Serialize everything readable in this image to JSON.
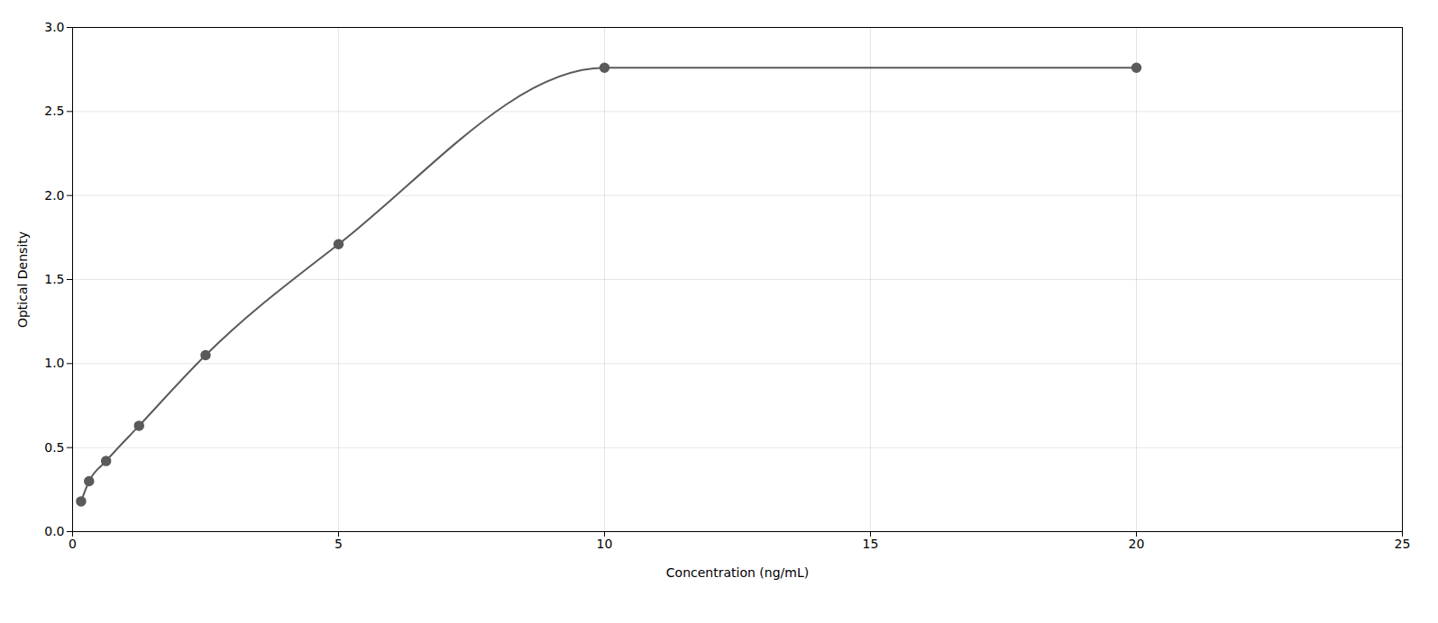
{
  "chart_data": {
    "type": "line",
    "x": [
      0.16,
      0.31,
      0.63,
      1.25,
      2.5,
      5.0,
      10.0,
      20.0
    ],
    "values": [
      0.18,
      0.3,
      0.42,
      0.63,
      1.05,
      1.71,
      2.76,
      2.76
    ],
    "xlabel": "Concentration (ng/mL)",
    "ylabel": "Optical Density",
    "xlim": [
      0,
      25
    ],
    "ylim": [
      0,
      3
    ],
    "xticks": [
      0,
      5,
      10,
      15,
      20,
      25
    ],
    "yticks": [
      {
        "value": 0,
        "label": "0.0"
      },
      0.5,
      {
        "value": 1.0,
        "label": "1.0"
      },
      1.5,
      {
        "value": 2.0,
        "label": "2.0"
      },
      2.5,
      {
        "value": 3.0,
        "label": "3.0"
      }
    ],
    "color": "#5a5a5a",
    "marker": "circle",
    "line_style": "solid",
    "grid": true
  }
}
